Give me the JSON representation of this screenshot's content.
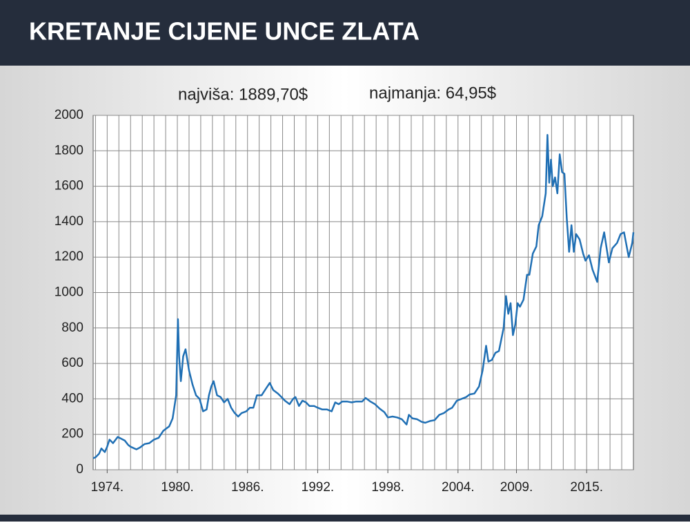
{
  "chart_data": {
    "type": "line",
    "title": "KRETANJE CIJENE UNCE ZLATA",
    "annotations": [
      "najviša: 1889,70$",
      "najmanja: 64,95$"
    ],
    "x": [
      1972.8,
      1973.0,
      1973.3,
      1973.5,
      1973.8,
      1974.0,
      1974.2,
      1974.5,
      1974.9,
      1975.2,
      1975.5,
      1975.8,
      1976.0,
      1976.5,
      1976.8,
      1977.2,
      1977.6,
      1978.0,
      1978.4,
      1978.8,
      1979.0,
      1979.3,
      1979.6,
      1979.9,
      1980.05,
      1980.15,
      1980.3,
      1980.5,
      1980.7,
      1980.9,
      1981.0,
      1981.3,
      1981.6,
      1981.9,
      1982.2,
      1982.5,
      1982.7,
      1982.9,
      1983.1,
      1983.4,
      1983.7,
      1984.0,
      1984.3,
      1984.6,
      1984.9,
      1985.2,
      1985.5,
      1985.9,
      1986.2,
      1986.5,
      1986.8,
      1987.2,
      1987.6,
      1987.9,
      1988.2,
      1988.6,
      1988.9,
      1989.2,
      1989.6,
      1989.9,
      1990.1,
      1990.4,
      1990.7,
      1991.0,
      1991.3,
      1991.7,
      1992.0,
      1992.4,
      1992.8,
      1993.2,
      1993.5,
      1993.8,
      1994.1,
      1994.5,
      1994.9,
      1995.3,
      1995.8,
      1996.1,
      1996.5,
      1996.9,
      1997.3,
      1997.7,
      1998.0,
      1998.4,
      1998.8,
      1999.2,
      1999.6,
      1999.8,
      2000.1,
      2000.5,
      2000.9,
      2001.2,
      2001.6,
      2002.0,
      2002.4,
      2002.8,
      2003.2,
      2003.5,
      2003.9,
      2004.3,
      2004.7,
      2005.0,
      2005.4,
      2005.8,
      2006.1,
      2006.4,
      2006.6,
      2006.9,
      2007.2,
      2007.5,
      2007.9,
      2008.1,
      2008.3,
      2008.5,
      2008.7,
      2008.9,
      2009.1,
      2009.3,
      2009.6,
      2009.9,
      2010.1,
      2010.4,
      2010.7,
      2010.9,
      2011.2,
      2011.5,
      2011.65,
      2011.8,
      2011.95,
      2012.1,
      2012.3,
      2012.5,
      2012.7,
      2012.9,
      2013.1,
      2013.3,
      2013.5,
      2013.7,
      2013.9,
      2014.1,
      2014.4,
      2014.7,
      2014.9,
      2015.2,
      2015.5,
      2015.9,
      2016.2,
      2016.5,
      2016.9,
      2017.2,
      2017.6,
      2017.9,
      2018.2,
      2018.6,
      2018.9,
      2019.0
    ],
    "series": [
      {
        "color": "#1f6fb4",
        "values": [
          64.95,
          70,
          90,
          120,
          100,
          130,
          170,
          150,
          185,
          175,
          165,
          140,
          130,
          115,
          125,
          145,
          150,
          170,
          180,
          220,
          230,
          245,
          290,
          420,
          850,
          640,
          500,
          640,
          680,
          600,
          560,
          480,
          420,
          400,
          330,
          340,
          420,
          470,
          500,
          420,
          410,
          380,
          400,
          350,
          320,
          300,
          320,
          330,
          350,
          350,
          420,
          420,
          460,
          490,
          450,
          430,
          410,
          390,
          370,
          400,
          410,
          360,
          390,
          380,
          360,
          360,
          350,
          340,
          340,
          330,
          380,
          370,
          385,
          385,
          380,
          385,
          385,
          405,
          385,
          370,
          345,
          325,
          295,
          300,
          295,
          285,
          255,
          310,
          290,
          285,
          270,
          265,
          275,
          280,
          310,
          320,
          340,
          350,
          390,
          400,
          410,
          425,
          430,
          470,
          560,
          700,
          610,
          620,
          660,
          670,
          800,
          980,
          880,
          940,
          760,
          820,
          940,
          920,
          960,
          1100,
          1100,
          1220,
          1260,
          1380,
          1430,
          1560,
          1889.7,
          1620,
          1750,
          1600,
          1650,
          1560,
          1780,
          1680,
          1670,
          1420,
          1230,
          1380,
          1230,
          1330,
          1300,
          1220,
          1180,
          1210,
          1130,
          1060,
          1250,
          1340,
          1170,
          1250,
          1280,
          1330,
          1340,
          1200,
          1280,
          1340
        ]
      }
    ],
    "xlim": [
      1972.8,
      2019.0
    ],
    "xticks": [
      {
        "value": 1974,
        "label": "1974."
      },
      {
        "value": 1980,
        "label": "1980."
      },
      {
        "value": 1986,
        "label": "1986."
      },
      {
        "value": 1992,
        "label": "1992."
      },
      {
        "value": 1998,
        "label": "1998."
      },
      {
        "value": 2004,
        "label": "2004."
      },
      {
        "value": 2009,
        "label": "2009."
      },
      {
        "value": 2015,
        "label": "2015."
      }
    ],
    "xminorticks": [
      1973,
      1974,
      1975,
      1976,
      1977,
      1978,
      1979,
      1980,
      1981,
      1982,
      1983,
      1984,
      1985,
      1986,
      1987,
      1988,
      1989,
      1990,
      1991,
      1992,
      1993,
      1994,
      1995,
      1996,
      1997,
      1998,
      1999,
      2000,
      2001,
      2002,
      2003,
      2004,
      2005,
      2006,
      2007,
      2008,
      2009,
      2010,
      2011,
      2012,
      2013,
      2014,
      2015,
      2016,
      2017,
      2018
    ],
    "ylim": [
      0,
      2000
    ],
    "yticks": [
      0,
      200,
      400,
      600,
      800,
      1000,
      1200,
      1400,
      1600,
      1800,
      2000
    ],
    "grid": true
  }
}
